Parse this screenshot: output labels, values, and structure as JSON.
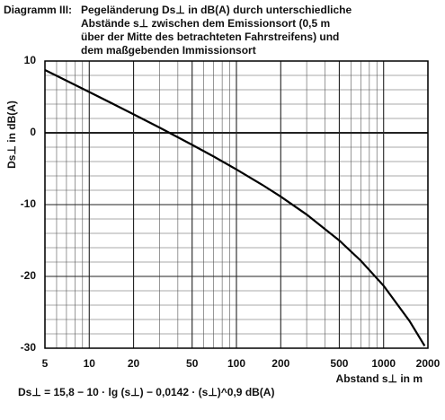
{
  "chart_data": {
    "type": "line",
    "label": "Diagramm III:",
    "title": [
      "Pegeländerung Ds⊥ in dB(A) durch unterschiedliche",
      "Abstände s⊥ zwischen dem Emissionsort (0,5 m",
      "über der Mitte des betrachteten Fahrstreifens) und",
      "dem maßgebenden Immissionsort"
    ],
    "y_label": "Ds⊥ in dB(A)",
    "x_label": "Abstand s⊥ in m",
    "formula": "Ds⊥ = 15,8 − 10 · lg (s⊥) − 0,0142 · (s⊥)^0,9   dB(A)",
    "xscale": "log",
    "xlim": [
      5,
      2000
    ],
    "ylim": [
      -30,
      10
    ],
    "xticks": [
      5,
      10,
      20,
      50,
      100,
      200,
      500,
      1000,
      2000
    ],
    "yticks": [
      -30,
      -20,
      -10,
      0,
      10
    ],
    "minor_xticks": [
      6,
      7,
      8,
      9,
      30,
      40,
      60,
      70,
      80,
      90,
      300,
      400,
      600,
      700,
      800,
      900
    ],
    "minor_yticks": [
      -28,
      -26,
      -24,
      -22,
      -18,
      -16,
      -14,
      -12,
      -8,
      -6,
      -4,
      -2,
      2,
      4,
      6,
      8
    ],
    "grid": true,
    "x": [
      5,
      7,
      10,
      15,
      20,
      30,
      50,
      70,
      100,
      150,
      200,
      300,
      500,
      700,
      1000,
      1500,
      1900
    ],
    "series": [
      {
        "name": "Ds⊥",
        "color": "#000000",
        "values": [
          8.75,
          7.27,
          5.69,
          3.88,
          2.58,
          0.73,
          -1.67,
          -3.3,
          -5.1,
          -7.25,
          -8.88,
          -11.38,
          -15.0,
          -17.81,
          -21.3,
          -26.21,
          -29.68
        ]
      }
    ]
  }
}
